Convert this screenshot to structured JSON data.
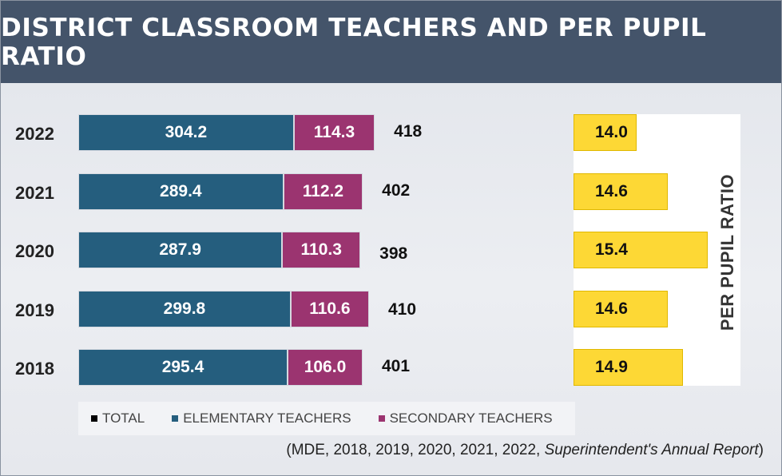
{
  "title": "DISTRICT CLASSROOM TEACHERS AND PER PUPIL RATIO",
  "chart_data": [
    {
      "type": "bar",
      "orientation": "horizontal-stacked",
      "categories": [
        "2022",
        "2021",
        "2020",
        "2019",
        "2018"
      ],
      "series": [
        {
          "name": "ELEMENTARY TEACHERS",
          "color": "#255e7e",
          "values": [
            "304.2",
            "289.4",
            "287.9",
            "299.8",
            "295.4"
          ]
        },
        {
          "name": "SECONDARY TEACHERS",
          "color": "#9b3470",
          "values": [
            "114.3",
            "112.2",
            "110.3",
            "110.6",
            "106.0"
          ]
        },
        {
          "name": "TOTAL",
          "color": "#000000",
          "values": [
            "418",
            "402",
            "398",
            "410",
            "401"
          ]
        }
      ],
      "xlim": [
        0,
        575
      ]
    },
    {
      "type": "bar",
      "orientation": "horizontal",
      "title": "PER PUPIL RATIO",
      "categories": [
        "2022",
        "2021",
        "2020",
        "2019",
        "2018"
      ],
      "values": [
        "14.0",
        "14.6",
        "15.4",
        "14.6",
        "14.9"
      ],
      "color": "#fdd835",
      "xlim": [
        12.75,
        15.55
      ]
    }
  ],
  "legend": [
    {
      "label": "TOTAL",
      "color": "#000000"
    },
    {
      "label": "ELEMENTARY TEACHERS",
      "color": "#255e7e"
    },
    {
      "label": "SECONDARY TEACHERS",
      "color": "#9b3470"
    }
  ],
  "caption": {
    "prefix": "(MDE, 2018, 2019, 2020, 2021, 2022, ",
    "italic": "Superintendent's Annual Report",
    "suffix": ")"
  }
}
